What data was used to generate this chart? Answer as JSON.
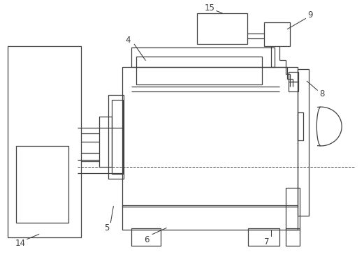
{
  "fig_width": 5.21,
  "fig_height": 3.91,
  "dpi": 100,
  "line_color": "#404040",
  "bg_color": "#ffffff",
  "line_width": 0.9
}
